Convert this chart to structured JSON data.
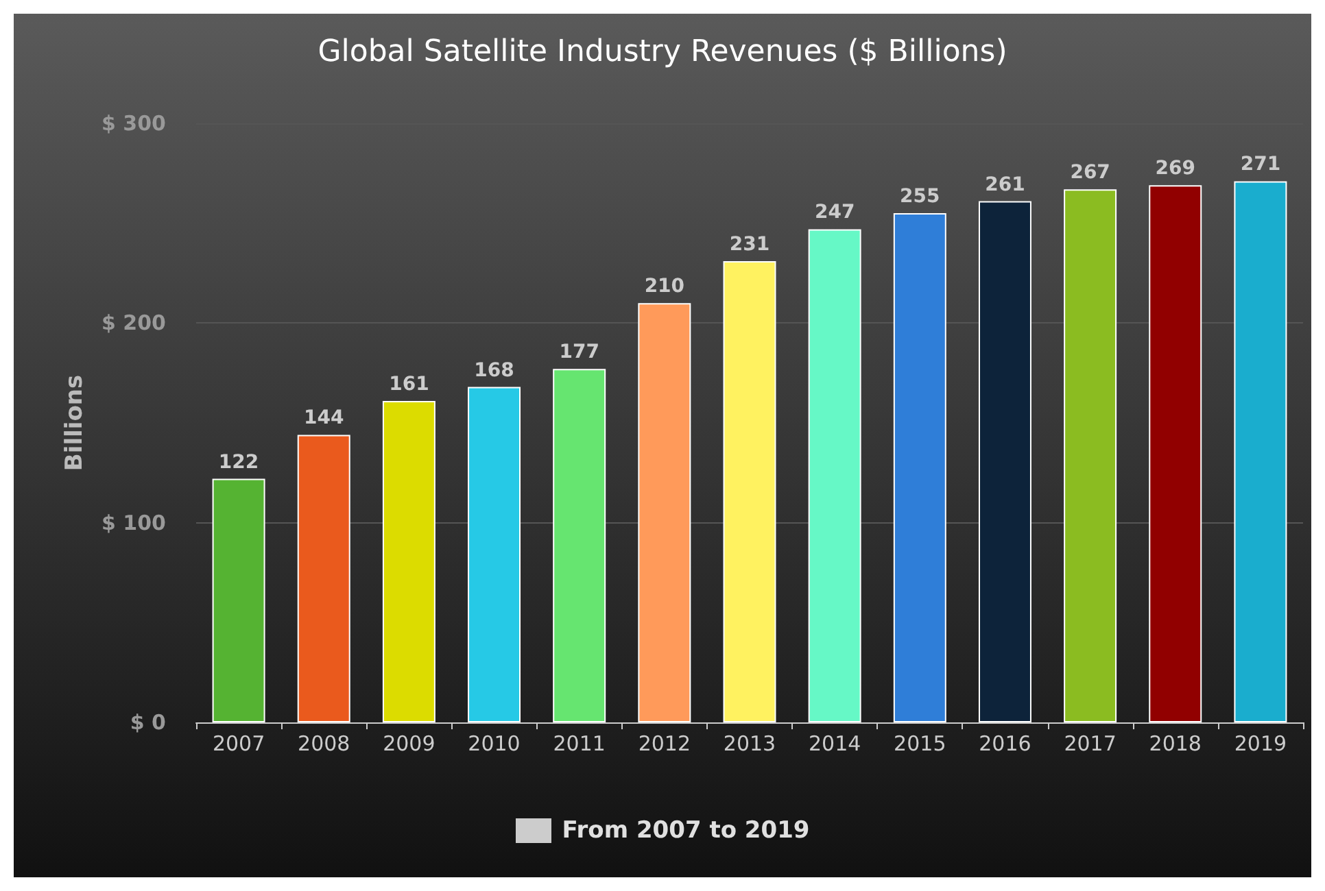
{
  "chart_data": {
    "type": "bar",
    "title": "Global Satellite Industry Revenues ($ Billions)",
    "ylabel": "Billions",
    "categories": [
      "2007",
      "2008",
      "2009",
      "2010",
      "2011",
      "2012",
      "2013",
      "2014",
      "2015",
      "2016",
      "2017",
      "2018",
      "2019"
    ],
    "series": [
      {
        "name": "From 2007 to 2019",
        "color": "#cccccc",
        "colors": [
          "#55b332",
          "#ea5a1d",
          "#dcdc00",
          "#26c9e6",
          "#66e570",
          "#ff9a5a",
          "#fff260",
          "#66f8c6",
          "#2f7ed8",
          "#0d233a",
          "#8bbc21",
          "#910000",
          "#1aadce"
        ],
        "values": [
          122,
          144,
          161,
          168,
          177,
          210,
          231,
          247,
          255,
          261,
          267,
          269,
          271
        ]
      }
    ],
    "ylim": [
      0,
      300
    ],
    "yticks": [
      {
        "value": 0,
        "label": "$ 0"
      },
      {
        "value": 100,
        "label": "$ 100"
      },
      {
        "value": 200,
        "label": "$ 200"
      },
      {
        "value": 300,
        "label": "$ 300"
      }
    ],
    "grid": "y",
    "legend": "bottom",
    "data_labels": true
  }
}
